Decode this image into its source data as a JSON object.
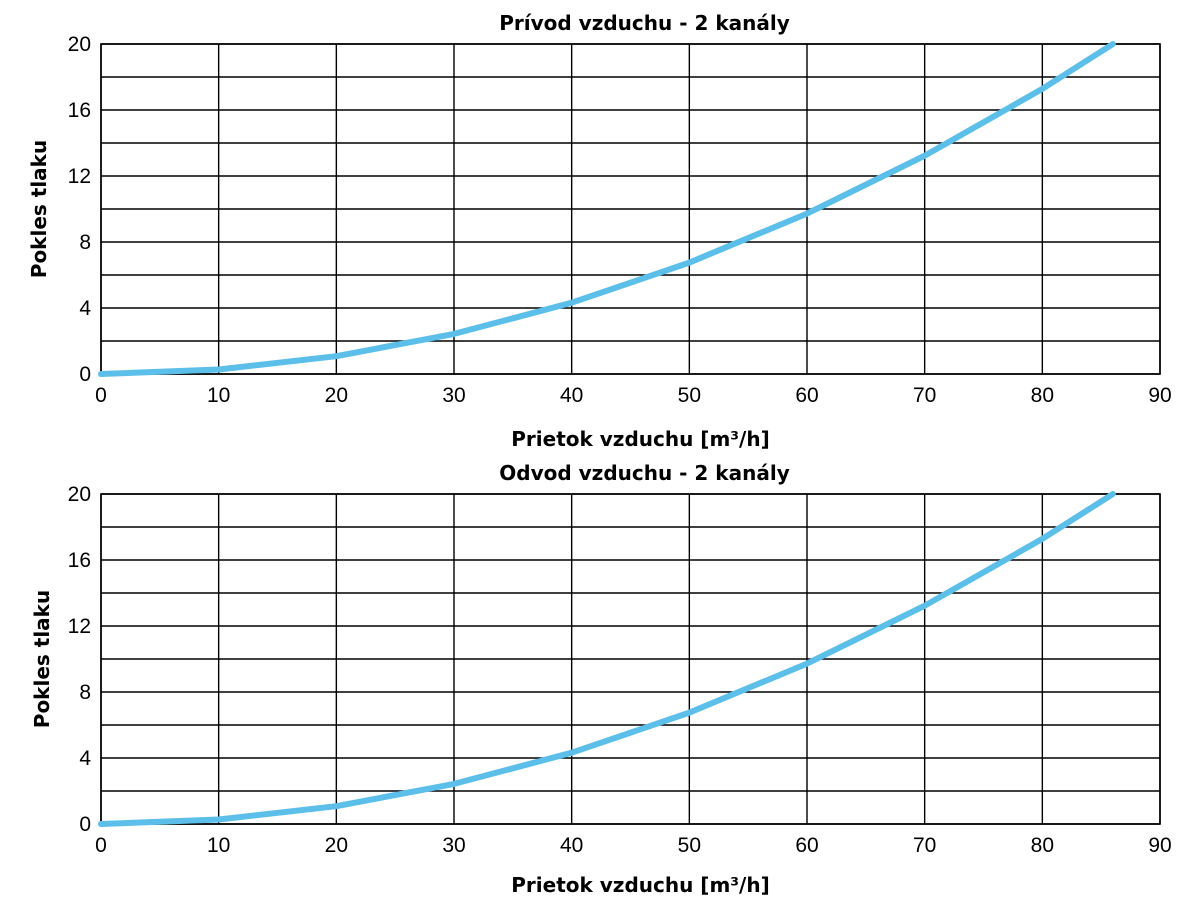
{
  "chart_data": [
    {
      "type": "line",
      "title": "Prívod vzduchu - 2 kanály",
      "xlabel": "Prietok vzduchu [m³/h]",
      "ylabel": "Pokles tlaku",
      "xlim": [
        0,
        90
      ],
      "ylim": [
        0,
        20
      ],
      "x_ticks": [
        "0",
        "10",
        "20",
        "30",
        "40",
        "50",
        "60",
        "70",
        "80",
        "90"
      ],
      "y_ticks": [
        "0",
        "4",
        "8",
        "12",
        "16",
        "20"
      ],
      "grid": true,
      "series": [
        {
          "color": "#5bbfea",
          "x": [
            0,
            10,
            20,
            30,
            40,
            50,
            60,
            70,
            80,
            86
          ],
          "y": [
            0,
            0.27,
            1.08,
            2.43,
            4.32,
            6.75,
            9.72,
            13.23,
            17.28,
            20.0
          ]
        }
      ]
    },
    {
      "type": "line",
      "title": "Odvod vzduchu - 2 kanály",
      "xlabel": "Prietok vzduchu [m³/h]",
      "ylabel": "Pokles tlaku",
      "xlim": [
        0,
        90
      ],
      "ylim": [
        0,
        20
      ],
      "x_ticks": [
        "0",
        "10",
        "20",
        "30",
        "40",
        "50",
        "60",
        "70",
        "80",
        "90"
      ],
      "y_ticks": [
        "0",
        "4",
        "8",
        "12",
        "16",
        "20"
      ],
      "grid": true,
      "series": [
        {
          "color": "#5bbfea",
          "x": [
            0,
            10,
            20,
            30,
            40,
            50,
            60,
            70,
            80,
            86
          ],
          "y": [
            0,
            0.27,
            1.08,
            2.43,
            4.32,
            6.75,
            9.72,
            13.23,
            17.28,
            20.0
          ]
        }
      ]
    }
  ]
}
